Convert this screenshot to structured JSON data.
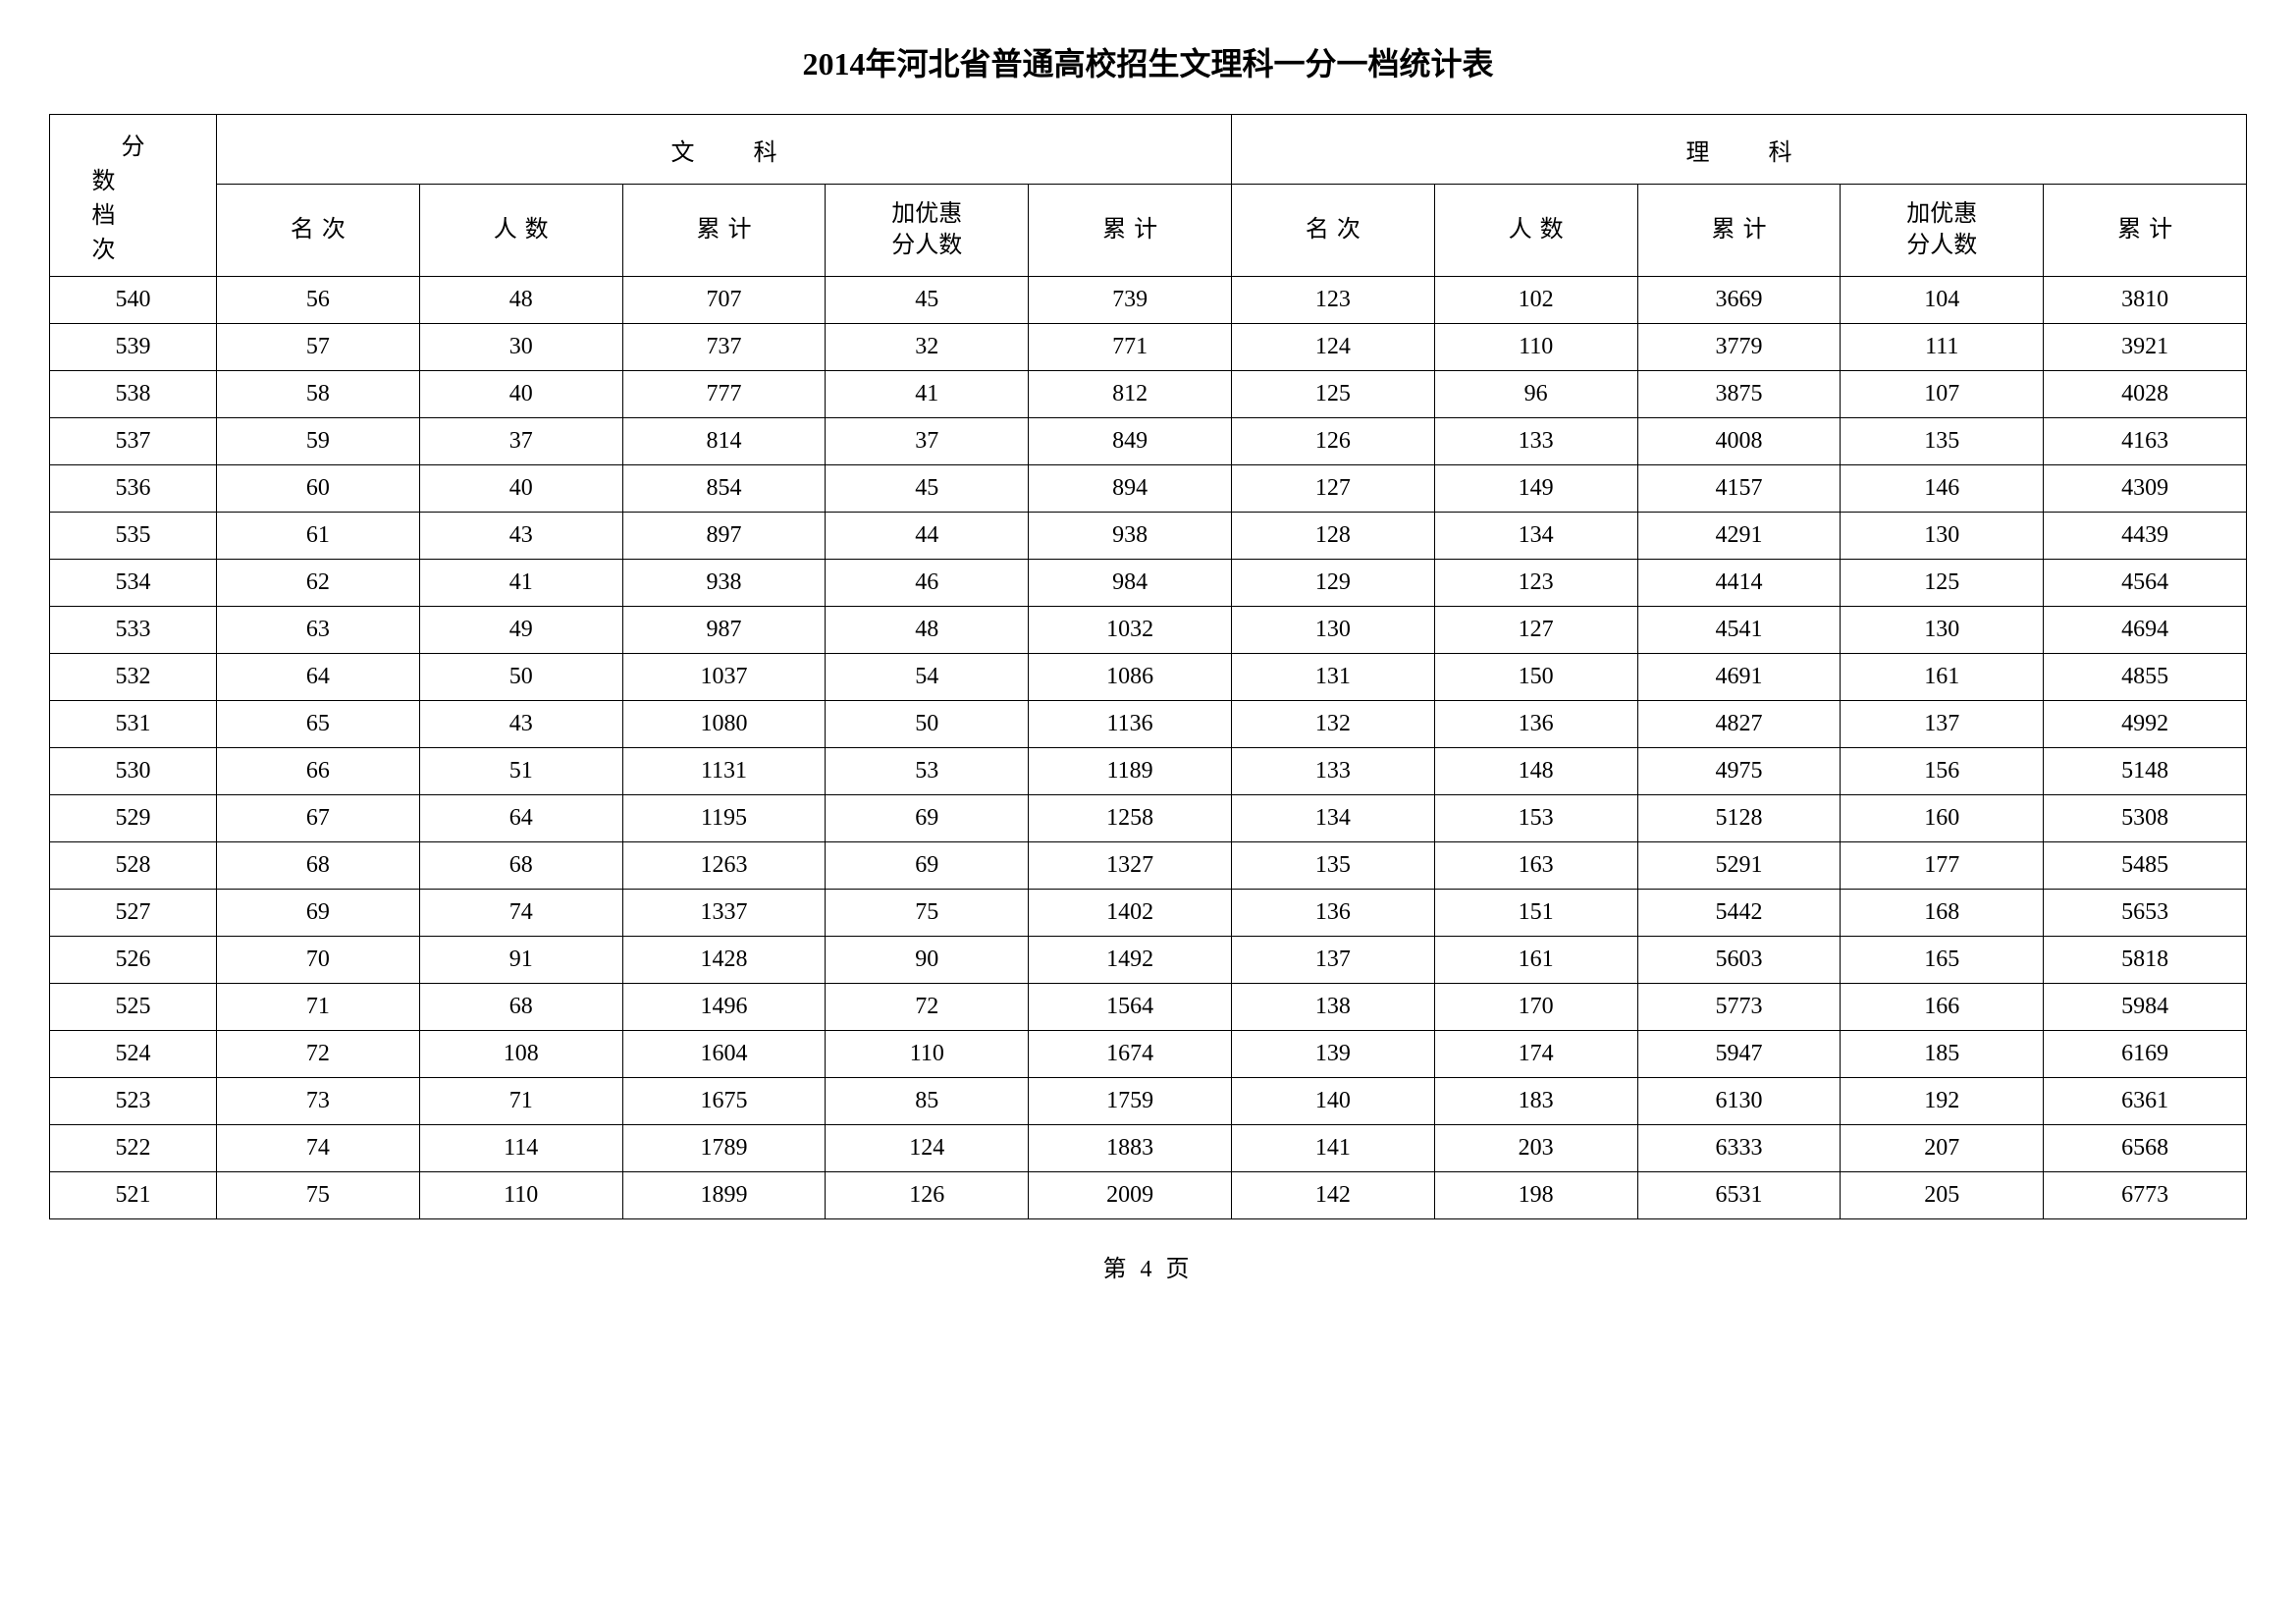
{
  "title": "2014年河北省普通高校招生文理科一分一档统计表",
  "footer": "第 4 页",
  "table": {
    "columns": {
      "score_header": "分数档次",
      "group_headers": [
        "文科",
        "理科"
      ],
      "sub_headers": [
        "名次",
        "人数",
        "累计",
        "加优惠分人数",
        "累计",
        "名次",
        "人数",
        "累计",
        "加优惠分人数",
        "累计"
      ]
    },
    "rows": [
      [
        "540",
        "56",
        "48",
        "707",
        "45",
        "739",
        "123",
        "102",
        "3669",
        "104",
        "3810"
      ],
      [
        "539",
        "57",
        "30",
        "737",
        "32",
        "771",
        "124",
        "110",
        "3779",
        "111",
        "3921"
      ],
      [
        "538",
        "58",
        "40",
        "777",
        "41",
        "812",
        "125",
        "96",
        "3875",
        "107",
        "4028"
      ],
      [
        "537",
        "59",
        "37",
        "814",
        "37",
        "849",
        "126",
        "133",
        "4008",
        "135",
        "4163"
      ],
      [
        "536",
        "60",
        "40",
        "854",
        "45",
        "894",
        "127",
        "149",
        "4157",
        "146",
        "4309"
      ],
      [
        "535",
        "61",
        "43",
        "897",
        "44",
        "938",
        "128",
        "134",
        "4291",
        "130",
        "4439"
      ],
      [
        "534",
        "62",
        "41",
        "938",
        "46",
        "984",
        "129",
        "123",
        "4414",
        "125",
        "4564"
      ],
      [
        "533",
        "63",
        "49",
        "987",
        "48",
        "1032",
        "130",
        "127",
        "4541",
        "130",
        "4694"
      ],
      [
        "532",
        "64",
        "50",
        "1037",
        "54",
        "1086",
        "131",
        "150",
        "4691",
        "161",
        "4855"
      ],
      [
        "531",
        "65",
        "43",
        "1080",
        "50",
        "1136",
        "132",
        "136",
        "4827",
        "137",
        "4992"
      ],
      [
        "530",
        "66",
        "51",
        "1131",
        "53",
        "1189",
        "133",
        "148",
        "4975",
        "156",
        "5148"
      ],
      [
        "529",
        "67",
        "64",
        "1195",
        "69",
        "1258",
        "134",
        "153",
        "5128",
        "160",
        "5308"
      ],
      [
        "528",
        "68",
        "68",
        "1263",
        "69",
        "1327",
        "135",
        "163",
        "5291",
        "177",
        "5485"
      ],
      [
        "527",
        "69",
        "74",
        "1337",
        "75",
        "1402",
        "136",
        "151",
        "5442",
        "168",
        "5653"
      ],
      [
        "526",
        "70",
        "91",
        "1428",
        "90",
        "1492",
        "137",
        "161",
        "5603",
        "165",
        "5818"
      ],
      [
        "525",
        "71",
        "68",
        "1496",
        "72",
        "1564",
        "138",
        "170",
        "5773",
        "166",
        "5984"
      ],
      [
        "524",
        "72",
        "108",
        "1604",
        "110",
        "1674",
        "139",
        "174",
        "5947",
        "185",
        "6169"
      ],
      [
        "523",
        "73",
        "71",
        "1675",
        "85",
        "1759",
        "140",
        "183",
        "6130",
        "192",
        "6361"
      ],
      [
        "522",
        "74",
        "114",
        "1789",
        "124",
        "1883",
        "141",
        "203",
        "6333",
        "207",
        "6568"
      ],
      [
        "521",
        "75",
        "110",
        "1899",
        "126",
        "2009",
        "142",
        "198",
        "6531",
        "205",
        "6773"
      ]
    ],
    "border_color": "#000000",
    "background_color": "#ffffff",
    "text_color": "#000000",
    "font_size": 24,
    "title_font_size": 32
  }
}
